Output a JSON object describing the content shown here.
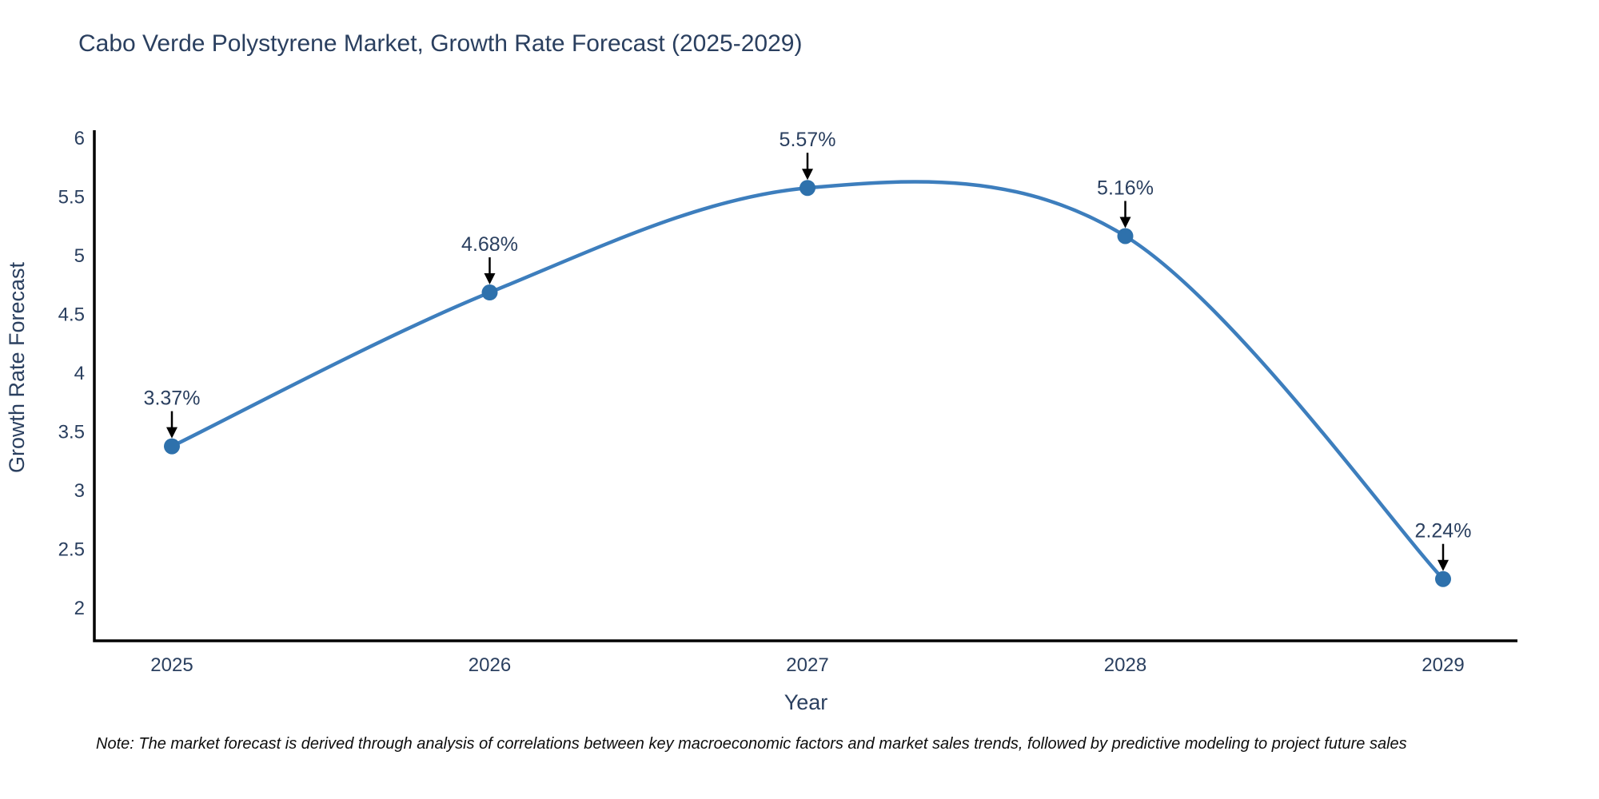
{
  "title": "Cabo Verde Polystyrene Market, Growth Rate Forecast (2025-2029)",
  "footnote": "Note: The market forecast is derived through analysis of correlations between key macroeconomic factors and market sales trends, followed by predictive modeling to project future sales",
  "chart_data": {
    "type": "line",
    "line_shape": "spline",
    "title": "Cabo Verde Polystyrene Market, Growth Rate Forecast (2025-2029)",
    "xlabel": "Year",
    "ylabel": "Growth Rate Forecast",
    "x": [
      2025,
      2026,
      2027,
      2028,
      2029
    ],
    "y": [
      3.37,
      4.68,
      5.57,
      5.16,
      2.24
    ],
    "point_labels": [
      "3.37%",
      "4.68%",
      "5.57%",
      "5.16%",
      "2.24%"
    ],
    "x_tick_labels": [
      "2025",
      "2026",
      "2027",
      "2028",
      "2029"
    ],
    "y_tick_values": [
      2,
      2.5,
      3,
      3.5,
      4,
      4.5,
      5,
      5.5,
      6
    ],
    "y_tick_labels": [
      "2",
      "2.5",
      "3",
      "3.5",
      "4",
      "4.5",
      "5",
      "5.5",
      "6"
    ],
    "xlim": [
      2024.76,
      2029.24
    ],
    "ylim": [
      1.71,
      6.06
    ],
    "grid": false,
    "legend": null,
    "markers": true,
    "annotations_have_arrows": true,
    "colors": {
      "line": "#3d7ebd",
      "marker": "#2e71ac",
      "axis_line": "#000000",
      "text": "#2a3f5f",
      "arrow": "#000000",
      "background": "#ffffff"
    }
  }
}
